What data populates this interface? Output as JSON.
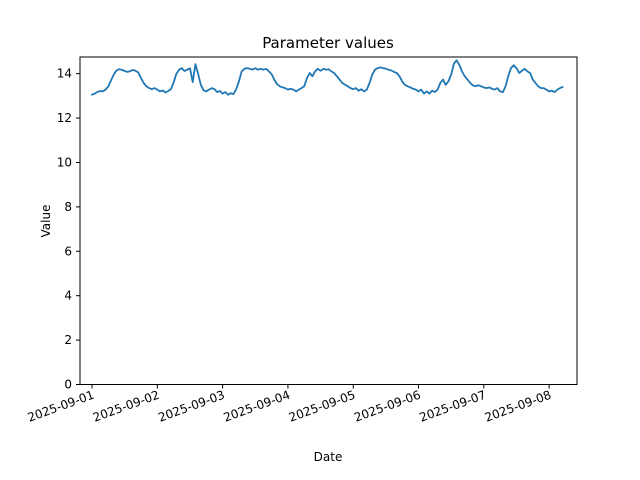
{
  "chart_data": {
    "type": "line",
    "title": "Parameter values",
    "xlabel": "Date",
    "ylabel": "Value",
    "series_name": "Parameter values",
    "series_color": "#1f77b4",
    "grid": false,
    "legend": null,
    "x_unit": "hours since 2025-09-01 00:00",
    "x_step_hours": 1,
    "x_tick_labels": [
      "2025-09-01",
      "2025-09-02",
      "2025-09-03",
      "2025-09-04",
      "2025-09-05",
      "2025-09-06",
      "2025-09-07",
      "2025-09-08"
    ],
    "y_ticks": [
      0,
      2,
      4,
      6,
      8,
      10,
      12,
      14
    ],
    "xlim_days": [
      -0.184,
      7.427
    ],
    "ylim": [
      0,
      14.75
    ],
    "values": [
      13.05,
      13.1,
      13.18,
      13.22,
      13.2,
      13.28,
      13.43,
      13.7,
      13.96,
      14.14,
      14.2,
      14.17,
      14.12,
      14.08,
      14.11,
      14.17,
      14.13,
      14.05,
      13.8,
      13.58,
      13.43,
      13.35,
      13.3,
      13.35,
      13.28,
      13.2,
      13.24,
      13.15,
      13.22,
      13.3,
      13.6,
      14.0,
      14.18,
      14.25,
      14.12,
      14.18,
      14.24,
      13.62,
      14.43,
      14.0,
      13.5,
      13.25,
      13.2,
      13.28,
      13.35,
      13.3,
      13.17,
      13.22,
      13.1,
      13.17,
      13.05,
      13.12,
      13.08,
      13.3,
      13.65,
      14.1,
      14.22,
      14.25,
      14.22,
      14.18,
      14.25,
      14.18,
      14.22,
      14.18,
      14.22,
      14.1,
      13.98,
      13.73,
      13.53,
      13.43,
      13.38,
      13.35,
      13.28,
      13.32,
      13.28,
      13.2,
      13.28,
      13.35,
      13.43,
      13.8,
      14.03,
      13.88,
      14.1,
      14.22,
      14.13,
      14.22,
      14.18,
      14.2,
      14.1,
      14.03,
      13.88,
      13.73,
      13.58,
      13.5,
      13.43,
      13.35,
      13.3,
      13.35,
      13.23,
      13.3,
      13.2,
      13.28,
      13.58,
      13.96,
      14.18,
      14.25,
      14.28,
      14.25,
      14.22,
      14.18,
      14.14,
      14.08,
      14.03,
      13.88,
      13.65,
      13.5,
      13.43,
      13.38,
      13.32,
      13.28,
      13.2,
      13.28,
      13.1,
      13.2,
      13.1,
      13.23,
      13.17,
      13.28,
      13.58,
      13.73,
      13.5,
      13.65,
      13.96,
      14.45,
      14.6,
      14.4,
      14.1,
      13.88,
      13.73,
      13.58,
      13.47,
      13.43,
      13.48,
      13.43,
      13.38,
      13.35,
      13.38,
      13.32,
      13.28,
      13.35,
      13.2,
      13.17,
      13.43,
      13.9,
      14.25,
      14.38,
      14.25,
      14.03,
      14.13,
      14.22,
      14.1,
      14.03,
      13.73,
      13.58,
      13.43,
      13.35,
      13.35,
      13.28,
      13.2,
      13.23,
      13.17,
      13.28,
      13.35,
      13.4
    ]
  }
}
